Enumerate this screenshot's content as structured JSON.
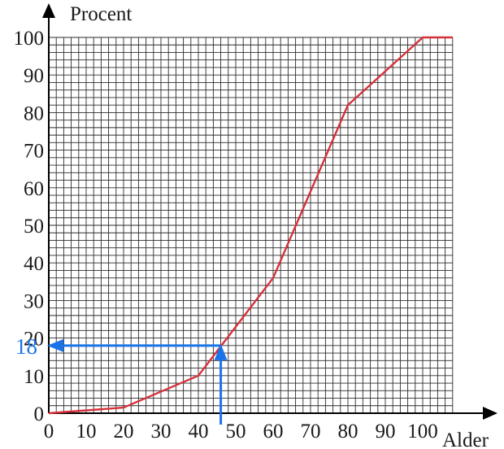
{
  "chart_data": {
    "type": "line",
    "xlabel": "Alder",
    "ylabel": "Procent",
    "xlim": [
      0,
      108
    ],
    "ylim": [
      0,
      100
    ],
    "x_ticks": [
      0,
      10,
      20,
      30,
      40,
      50,
      60,
      70,
      80,
      90,
      100
    ],
    "y_ticks": [
      0,
      10,
      20,
      30,
      40,
      50,
      60,
      70,
      80,
      90,
      100
    ],
    "grid": true,
    "minor_grid_step": 2,
    "series": [
      {
        "color": "#d6303a",
        "x": [
          0,
          20,
          40,
          60,
          80,
          100,
          108
        ],
        "y": [
          0,
          1.5,
          10,
          36,
          82,
          100,
          100
        ]
      }
    ],
    "annotation": {
      "label": "18",
      "y": 18,
      "x": 46,
      "color": "#1a73e8"
    }
  }
}
